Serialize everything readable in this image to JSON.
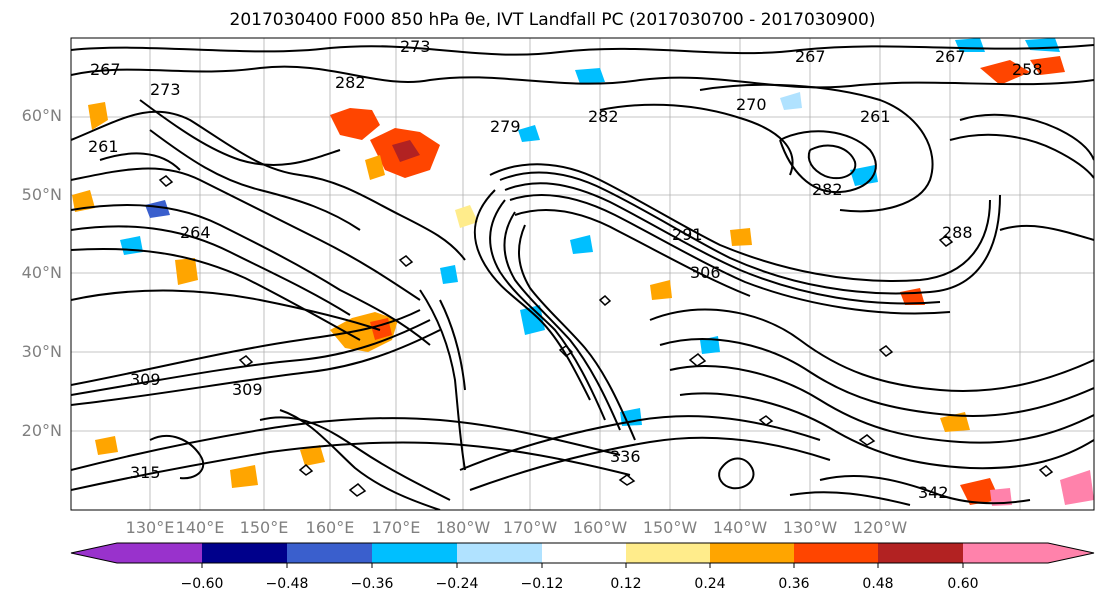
{
  "title": "2017030400 F000 850 hPa θe, IVT Landfall PC (2017030700 - 2017030900)",
  "map": {
    "lat_labels": [
      "60°N",
      "50°N",
      "40°N",
      "30°N",
      "20°N"
    ],
    "lon_labels": [
      "130°E",
      "140°E",
      "150°E",
      "160°E",
      "170°E",
      "180°W",
      "170°W",
      "160°W",
      "150°W",
      "140°W",
      "130°W",
      "120°W"
    ],
    "contour_labels": [
      "267",
      "273",
      "282",
      "261",
      "264",
      "279",
      "282",
      "270",
      "261",
      "267",
      "282",
      "288",
      "291",
      "306",
      "309",
      "342",
      "258",
      "267",
      "273",
      "309",
      "315",
      "336"
    ]
  },
  "colorbar": {
    "ticks": [
      "−0.60",
      "−0.48",
      "−0.36",
      "−0.24",
      "−0.12",
      "0.12",
      "0.24",
      "0.36",
      "0.48",
      "0.60"
    ],
    "colors": [
      "#9932cc",
      "#00008b",
      "#3a5fcd",
      "#00bfff",
      "#b0e2ff",
      "#ffffff",
      "#ffec8b",
      "#ffa500",
      "#ff4500",
      "#b22222",
      "#ff82ab"
    ]
  }
}
